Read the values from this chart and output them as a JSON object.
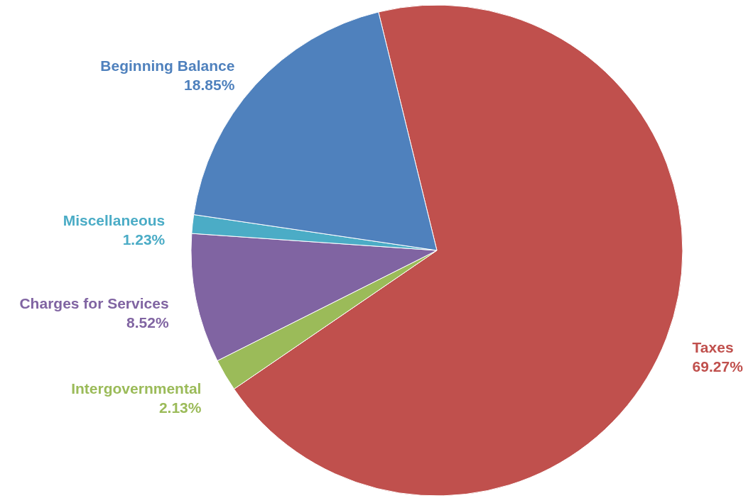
{
  "chart_data": {
    "type": "pie",
    "categories": [
      "Taxes",
      "Intergovernmental",
      "Charges for Services",
      "Miscellaneous",
      "Beginning Balance"
    ],
    "values": [
      69.27,
      2.13,
      8.52,
      1.23,
      18.85
    ],
    "value_labels": [
      "69.27%",
      "2.13%",
      "8.52%",
      "1.23%",
      "18.85%"
    ],
    "colors": [
      "#c0504d",
      "#9bbb59",
      "#8064a2",
      "#4bacc6",
      "#4f81bd"
    ]
  }
}
